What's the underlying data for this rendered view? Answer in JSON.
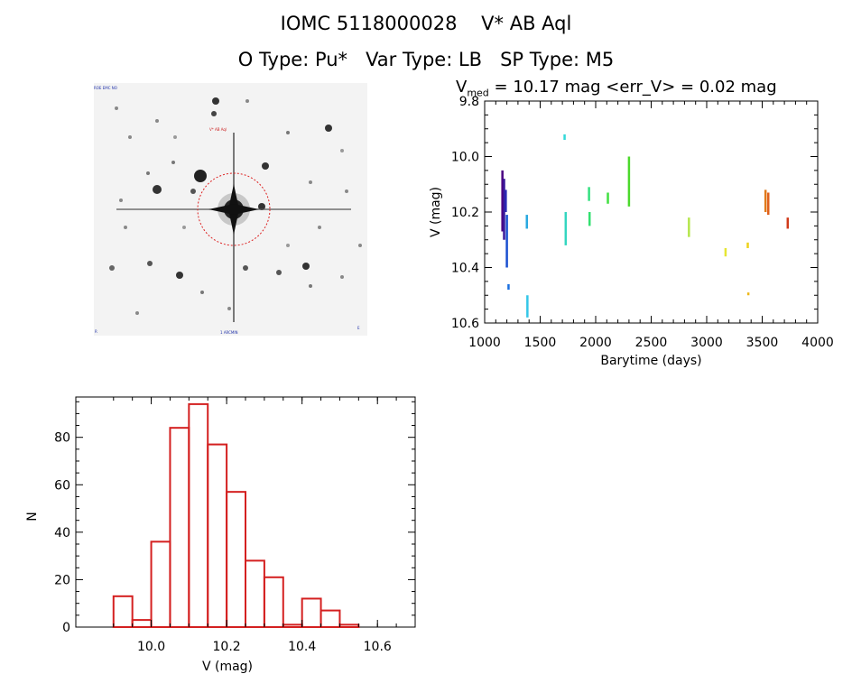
{
  "header": {
    "title_line1": "IOMC 5118000028    V* AB Aql",
    "title_line2": "O Type: Pu*   Var Type: LB   SP Type: M5"
  },
  "finder": {
    "label_topleft": "ROE EMC NO",
    "label_center": "V* AB Aql",
    "label_bottom": "1 ARCMIN",
    "label_bottomleft": "R",
    "label_bottomright": "E"
  },
  "chart_data": [
    {
      "type": "scatter",
      "title_prefix": "V",
      "title_sub": "med",
      "title_suffix": " = 10.17 mag <err_V> = 0.02 mag",
      "xlabel": "Barytime (days)",
      "ylabel": "V (mag)",
      "xlim": [
        1000,
        4000
      ],
      "ylim": [
        10.6,
        9.8
      ],
      "y_inverted": true,
      "x_ticks": [
        1000,
        1500,
        2000,
        2500,
        3000,
        3500,
        4000
      ],
      "y_ticks": [
        9.8,
        10.0,
        10.2,
        10.4,
        10.6
      ],
      "y_tick_labels": [
        "9.8",
        "10.0",
        "10.2",
        "10.4",
        "10.6"
      ],
      "grid": false,
      "segments": [
        {
          "x": 1160,
          "y0": 10.05,
          "y1": 10.27,
          "color": "#4b0082"
        },
        {
          "x": 1175,
          "y0": 10.08,
          "y1": 10.3,
          "color": "#3a1a9a"
        },
        {
          "x": 1190,
          "y0": 10.12,
          "y1": 10.2,
          "color": "#2a2ab5"
        },
        {
          "x": 1200,
          "y0": 10.21,
          "y1": 10.4,
          "color": "#1a4fd0"
        },
        {
          "x": 1215,
          "y0": 10.46,
          "y1": 10.48,
          "color": "#1a6fe0"
        },
        {
          "x": 1380,
          "y0": 10.21,
          "y1": 10.26,
          "color": "#2aa9e0"
        },
        {
          "x": 1385,
          "y0": 10.5,
          "y1": 10.58,
          "color": "#33c6e8"
        },
        {
          "x": 1720,
          "y0": 9.92,
          "y1": 9.94,
          "color": "#33d9d9"
        },
        {
          "x": 1730,
          "y0": 10.2,
          "y1": 10.32,
          "color": "#33d6c0"
        },
        {
          "x": 1940,
          "y0": 10.11,
          "y1": 10.16,
          "color": "#33e080"
        },
        {
          "x": 1945,
          "y0": 10.2,
          "y1": 10.25,
          "color": "#33e070"
        },
        {
          "x": 2110,
          "y0": 10.13,
          "y1": 10.17,
          "color": "#40e040"
        },
        {
          "x": 2300,
          "y0": 10.0,
          "y1": 10.18,
          "color": "#4cd92c"
        },
        {
          "x": 2840,
          "y0": 10.22,
          "y1": 10.29,
          "color": "#b5e64c"
        },
        {
          "x": 3170,
          "y0": 10.33,
          "y1": 10.36,
          "color": "#e6e633"
        },
        {
          "x": 3370,
          "y0": 10.31,
          "y1": 10.33,
          "color": "#eed21a"
        },
        {
          "x": 3375,
          "y0": 10.49,
          "y1": 10.5,
          "color": "#eeb81a"
        },
        {
          "x": 3530,
          "y0": 10.12,
          "y1": 10.2,
          "color": "#e07a1a"
        },
        {
          "x": 3555,
          "y0": 10.13,
          "y1": 10.21,
          "color": "#e0601a"
        },
        {
          "x": 3730,
          "y0": 10.22,
          "y1": 10.26,
          "color": "#d03a1a"
        }
      ]
    },
    {
      "type": "bar",
      "xlabel": "V (mag)",
      "ylabel": "N",
      "xlim": [
        0.88,
        0.69
      ],
      "ylim": [
        0,
        97
      ],
      "x_ticks": [
        "10.0",
        "10.2",
        "10.4",
        "10.6"
      ],
      "y_ticks": [
        0,
        20,
        40,
        60,
        80
      ],
      "bin_width": 0.05,
      "bins": [
        {
          "left": 9.9,
          "value": 13
        },
        {
          "left": 9.95,
          "value": 3
        },
        {
          "left": 10.0,
          "value": 36
        },
        {
          "left": 10.05,
          "value": 84
        },
        {
          "left": 10.1,
          "value": 94
        },
        {
          "left": 10.15,
          "value": 77
        },
        {
          "left": 10.2,
          "value": 57
        },
        {
          "left": 10.25,
          "value": 28
        },
        {
          "left": 10.3,
          "value": 21
        },
        {
          "left": 10.35,
          "value": 1
        },
        {
          "left": 10.4,
          "value": 12
        },
        {
          "left": 10.45,
          "value": 7
        },
        {
          "left": 10.5,
          "value": 1
        }
      ],
      "bar_color": "#d42020"
    }
  ]
}
